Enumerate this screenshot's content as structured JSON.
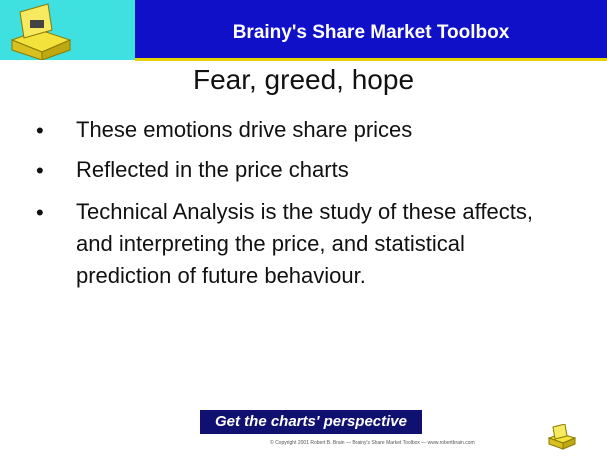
{
  "header": {
    "title": "Brainy's Share Market Toolbox"
  },
  "slide": {
    "title": "Fear, greed, hope",
    "bullets": [
      "These emotions drive share prices",
      "Reflected in the price charts",
      "Technical Analysis is the study of these affects, and interpreting the price, and statistical prediction of future behaviour."
    ]
  },
  "footer": {
    "tagline": "Get the charts' perspective",
    "copyright": "© Copyright 2001 Robert B. Brain — Brainy's Share Market Toolbox — www.robertbrain.com"
  }
}
